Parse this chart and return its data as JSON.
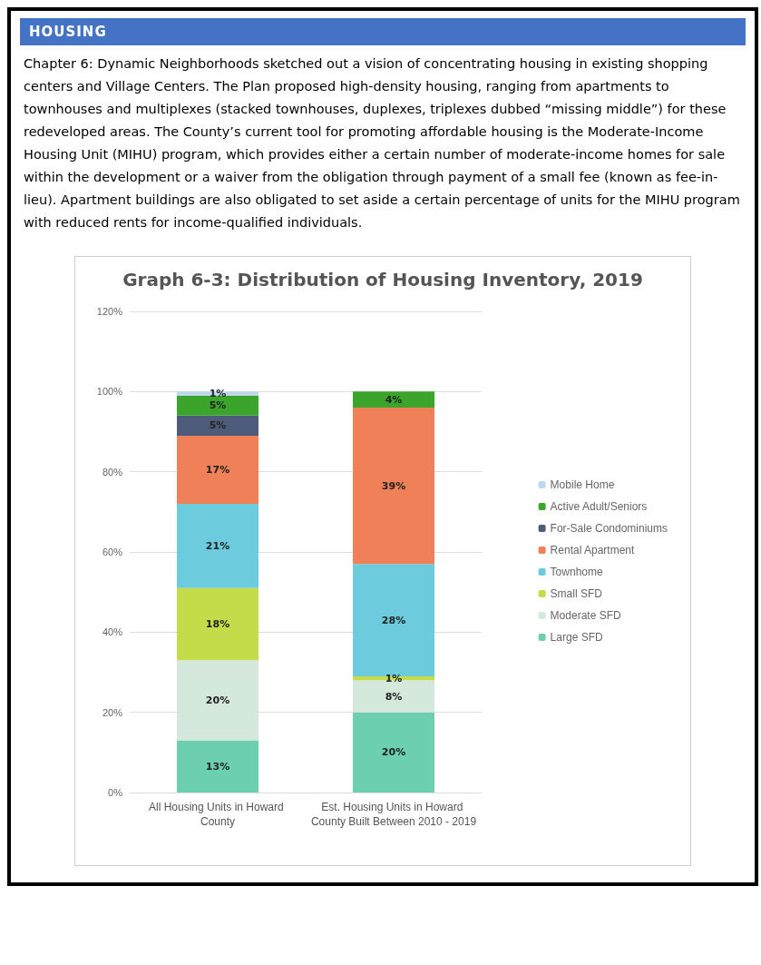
{
  "chart_data": {
    "type": "bar",
    "title": "Graph 6-3: Distribution of Housing Inventory, 2019",
    "annotations": [
      "HOUSING",
      "Chapter 6: Dynamic Neighborhoods sketched out a vision of concentrating housing in existing shopping centers and Village Centers. The Plan proposed high-density housing, ranging from apartments to townhouses and multiplexes (stacked townhouses, duplexes, triplexes dubbed “missing middle”) for these redeveloped areas. The County’s current tool for promoting affordable housing is the Moderate-Income Housing Unit (MIHU) program, which provides either a certain number of moderate-income homes for sale within the development or a waiver from the obligation through payment of a small fee (known as fee-in-lieu). Apartment buildings are also obligated to set aside a certain percentage of units for the MIHU program with reduced rents for income-qualified individuals."
    ],
    "categories": [
      "All Housing Units in Howard County",
      "Est. Housing Units in Howard County Built Between 2010 - 2019"
    ],
    "stacked": true,
    "series": [
      {
        "name": "Large SFD",
        "color": "#6bcfb0",
        "values": [
          13,
          20
        ],
        "value_labels": [
          "13%",
          "20%"
        ]
      },
      {
        "name": "Moderate SFD",
        "color": "#d5e8dc",
        "values": [
          20,
          8
        ],
        "value_labels": [
          "20%",
          "8%"
        ]
      },
      {
        "name": "Small SFD",
        "color": "#c5dc4a",
        "values": [
          18,
          1
        ],
        "value_labels": [
          "18%",
          "1%"
        ]
      },
      {
        "name": "Townhome",
        "color": "#6ccbdc",
        "values": [
          21,
          28
        ],
        "value_labels": [
          "21%",
          "28%"
        ]
      },
      {
        "name": "Rental Apartment",
        "color": "#f08058",
        "values": [
          17,
          39
        ],
        "value_labels": [
          "17%",
          "39%"
        ]
      },
      {
        "name": "For-Sale Condominiums",
        "color": "#4f5b7a",
        "values": [
          5,
          null
        ],
        "value_labels": [
          "5%",
          null
        ]
      },
      {
        "name": "Active Adult/Seniors",
        "color": "#3aa52a",
        "values": [
          5,
          4
        ],
        "value_labels": [
          "5%",
          "4%"
        ]
      },
      {
        "name": "Mobile Home",
        "color": "#bdd7ee",
        "values": [
          1,
          null
        ],
        "value_labels": [
          "1%",
          null
        ]
      }
    ],
    "ylim": [
      0,
      120
    ],
    "yticks": [
      {
        "value": 0,
        "label": "0%"
      },
      {
        "value": 20,
        "label": "20%"
      },
      {
        "value": 40,
        "label": "40%"
      },
      {
        "value": 60,
        "label": "60%"
      },
      {
        "value": 80,
        "label": "80%"
      },
      {
        "value": 100,
        "label": "100%"
      },
      {
        "value": 120,
        "label": "120%"
      }
    ],
    "grid": "y",
    "legend": "right"
  }
}
